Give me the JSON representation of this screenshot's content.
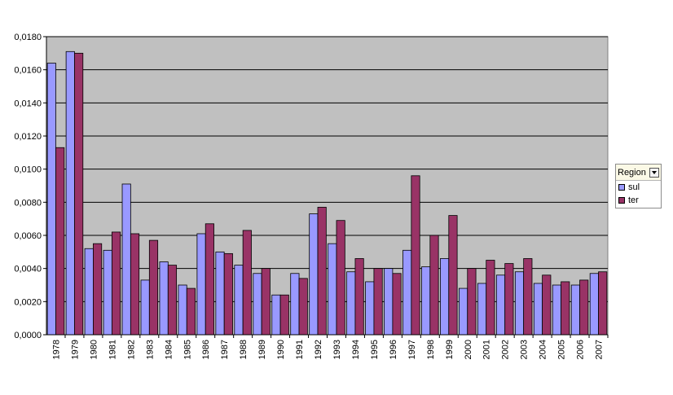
{
  "chart_data": {
    "type": "bar",
    "categories": [
      "1978",
      "1979",
      "1980",
      "1981",
      "1982",
      "1983",
      "1984",
      "1985",
      "1986",
      "1987",
      "1988",
      "1989",
      "1990",
      "1991",
      "1992",
      "1993",
      "1994",
      "1995",
      "1996",
      "1997",
      "1998",
      "1999",
      "2000",
      "2001",
      "2002",
      "2003",
      "2004",
      "2005",
      "2006",
      "2007"
    ],
    "series": [
      {
        "name": "sul",
        "color": "#9999ff",
        "values": [
          0.0164,
          0.0171,
          0.0052,
          0.0051,
          0.0091,
          0.0033,
          0.0044,
          0.003,
          0.0061,
          0.005,
          0.0042,
          0.0037,
          0.0024,
          0.0037,
          0.0073,
          0.0055,
          0.0038,
          0.0032,
          0.004,
          0.0051,
          0.0041,
          0.0046,
          0.0028,
          0.0031,
          0.0036,
          0.0038,
          0.0031,
          0.003,
          0.003,
          0.0037
        ]
      },
      {
        "name": "ter",
        "color": "#993366",
        "values": [
          0.0113,
          0.017,
          0.0055,
          0.0062,
          0.0061,
          0.0057,
          0.0042,
          0.0028,
          0.0067,
          0.0049,
          0.0063,
          0.004,
          0.0024,
          0.0034,
          0.0077,
          0.0069,
          0.0046,
          0.004,
          0.0037,
          0.0096,
          0.006,
          0.0072,
          0.004,
          0.0045,
          0.0043,
          0.0046,
          0.0036,
          0.0032,
          0.0033,
          0.0038
        ]
      }
    ],
    "ylim": [
      0,
      0.018
    ],
    "yticks": [
      "0,0000",
      "0,0020",
      "0,0040",
      "0,0060",
      "0,0080",
      "0,0100",
      "0,0120",
      "0,0140",
      "0,0160",
      "0,0180"
    ],
    "grid": true,
    "legend_position": "right",
    "title": "",
    "xlabel": "",
    "ylabel": ""
  },
  "legend": {
    "title": "Region",
    "items": [
      {
        "label": "sul",
        "color": "#9999ff"
      },
      {
        "label": "ter",
        "color": "#993366"
      }
    ]
  },
  "colors": {
    "plot_background": "#c0c0c0",
    "gridline": "#000000"
  }
}
